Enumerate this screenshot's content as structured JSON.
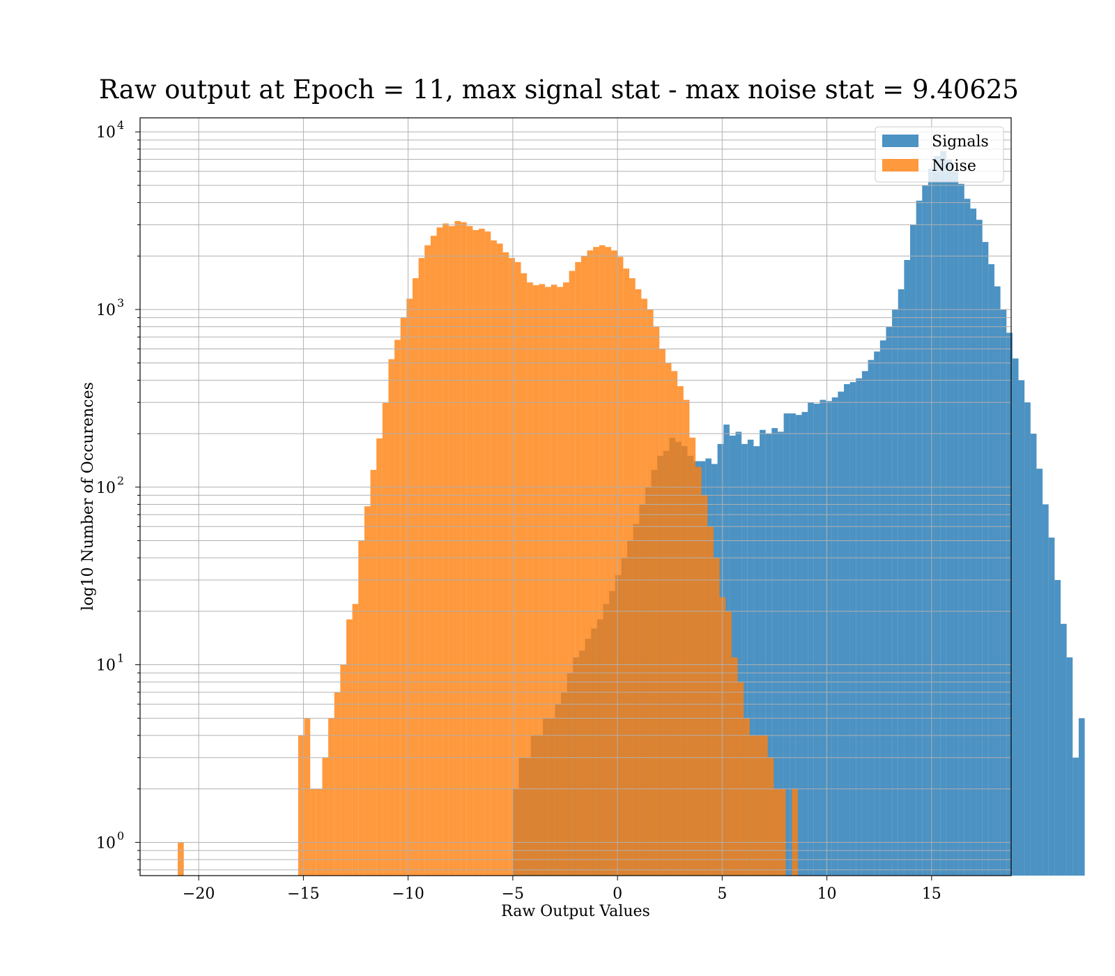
{
  "chart_data": {
    "type": "bar",
    "title": "Raw output at Epoch = 11, max signal stat - max noise stat = 9.40625",
    "xlabel": "Raw Output Values",
    "ylabel": "log10 Number of Occurences",
    "xlim": [
      -22.8,
      18.8
    ],
    "ylim": [
      0.65,
      12000
    ],
    "yscale": "log",
    "grid": true,
    "legend_position": "top-right",
    "x_ticks": [
      {
        "value": -20,
        "label": "−20"
      },
      {
        "value": -15,
        "label": "−15"
      },
      {
        "value": -10,
        "label": "−10"
      },
      {
        "value": -5,
        "label": "−5"
      },
      {
        "value": 0,
        "label": "0"
      },
      {
        "value": 5,
        "label": "5"
      },
      {
        "value": 10,
        "label": "10"
      },
      {
        "value": 15,
        "label": "15"
      }
    ],
    "y_ticks": [
      {
        "value": 1,
        "base": "10",
        "exp": "0"
      },
      {
        "value": 10,
        "base": "10",
        "exp": "1"
      },
      {
        "value": 100,
        "base": "10",
        "exp": "2"
      },
      {
        "value": 1000,
        "base": "10",
        "exp": "3"
      },
      {
        "value": 10000,
        "base": "10",
        "exp": "4"
      }
    ],
    "series": [
      {
        "name": "Signals",
        "color": "#1f77b4",
        "alpha": 0.8,
        "bin_start": -5.0,
        "bin_width": 0.2875,
        "values": [
          2,
          3,
          3,
          4,
          4,
          5,
          5,
          6,
          7,
          9,
          11,
          12,
          14,
          16,
          18,
          22,
          26,
          32,
          40,
          50,
          62,
          80,
          100,
          125,
          150,
          160,
          190,
          180,
          170,
          150,
          140,
          140,
          145,
          135,
          175,
          225,
          195,
          205,
          175,
          185,
          170,
          210,
          200,
          215,
          205,
          260,
          260,
          255,
          265,
          300,
          295,
          310,
          305,
          320,
          345,
          380,
          390,
          410,
          450,
          520,
          580,
          670,
          800,
          1000,
          1300,
          1900,
          3000,
          4100,
          5000,
          6200,
          7300,
          7800,
          7000,
          6000,
          5100,
          4200,
          3700,
          3200,
          2400,
          1800,
          1350,
          1000,
          740,
          530,
          400,
          300,
          200,
          127,
          80,
          52,
          30,
          17,
          11,
          3,
          5
        ]
      },
      {
        "name": "Noise",
        "color": "#ff7f0e",
        "alpha": 0.8,
        "bin_start": -21.0,
        "bin_width": 0.2875,
        "values": [
          1,
          0,
          0,
          0,
          0,
          0,
          0,
          0,
          0,
          0,
          0,
          0,
          0,
          0,
          0,
          0,
          0,
          0,
          0,
          0,
          4,
          5,
          2,
          2,
          3,
          5,
          7,
          10,
          18,
          22,
          50,
          78,
          125,
          188,
          298,
          525,
          675,
          900,
          1150,
          1500,
          1950,
          2300,
          2600,
          2900,
          3050,
          2950,
          3150,
          3100,
          2950,
          2800,
          2850,
          2750,
          2450,
          2350,
          2100,
          1950,
          1850,
          1600,
          1420,
          1370,
          1390,
          1340,
          1380,
          1340,
          1420,
          1650,
          1850,
          2000,
          2150,
          2250,
          2300,
          2250,
          2150,
          1980,
          1700,
          1500,
          1300,
          1150,
          1000,
          800,
          600,
          500,
          450,
          370,
          310,
          190,
          130,
          90,
          60,
          40,
          24,
          20,
          11,
          8,
          5,
          4,
          4,
          4,
          3,
          2,
          2,
          0,
          2
        ]
      }
    ]
  }
}
